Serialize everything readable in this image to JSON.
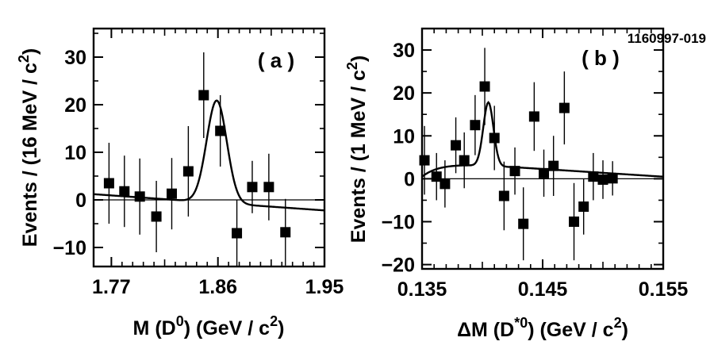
{
  "figure_id": "1160997-019",
  "chart_data": [
    {
      "type": "scatter",
      "panel_label": "( a )",
      "ylabel": "Events / (16 MeV / c",
      "ylabel_sup": "2",
      "ylabel_close": ")",
      "xlabel_pre": "M (D",
      "xlabel_sup1": "0",
      "xlabel_mid": ") (GeV / c",
      "xlabel_sup2": "2",
      "xlabel_post": ")",
      "xlim": [
        1.755,
        1.95
      ],
      "ylim": [
        -14,
        36
      ],
      "xticks": [
        1.77,
        1.86,
        1.95
      ],
      "xtick_labels": [
        "1.77",
        "1.86",
        "1.95"
      ],
      "yticks": [
        -10,
        0,
        10,
        20,
        30
      ],
      "ytick_labels": [
        "−10",
        "0",
        "10",
        "20",
        "30"
      ],
      "points": [
        {
          "x": 1.768,
          "y": 3.5,
          "err": 8.5
        },
        {
          "x": 1.781,
          "y": 1.8,
          "err": 7.5
        },
        {
          "x": 1.794,
          "y": 0.7,
          "err": 8.0
        },
        {
          "x": 1.808,
          "y": -3.5,
          "err": 7.5
        },
        {
          "x": 1.821,
          "y": 1.3,
          "err": 7.5
        },
        {
          "x": 1.835,
          "y": 6.0,
          "err": 9.5
        },
        {
          "x": 1.848,
          "y": 22.0,
          "err": 9.0
        },
        {
          "x": 1.862,
          "y": 14.5,
          "err": 7.5
        },
        {
          "x": 1.876,
          "y": -7.0,
          "err": 7.0
        },
        {
          "x": 1.889,
          "y": 2.7,
          "err": 5.5
        },
        {
          "x": 1.903,
          "y": 2.7,
          "err": 7.0
        },
        {
          "x": 1.917,
          "y": -6.8,
          "err": 7.0
        }
      ],
      "fit": {
        "y0": 1.2,
        "slope_per_gev": -17.5,
        "mean": 1.859,
        "sigma": 0.0085,
        "amp": 21.5
      }
    },
    {
      "type": "scatter",
      "panel_label": "( b )",
      "ylabel": "Events / (1 MeV / c",
      "ylabel_sup": "2",
      "ylabel_close": ")",
      "xlabel_pre": "ΔM (D",
      "xlabel_sup1": "*0",
      "xlabel_mid": ") (GeV / c",
      "xlabel_sup2": "2",
      "xlabel_post": ")",
      "xlim": [
        0.135,
        0.155
      ],
      "ylim": [
        -21,
        35
      ],
      "xticks": [
        0.135,
        0.145,
        0.155
      ],
      "xtick_labels": [
        "0.135",
        "0.145",
        "0.155"
      ],
      "yticks": [
        -20,
        -10,
        0,
        10,
        20,
        30
      ],
      "ytick_labels": [
        "−20",
        "−10",
        "0",
        "10",
        "20",
        "30"
      ],
      "points": [
        {
          "x": 0.1352,
          "y": 4.3,
          "err": 8.0
        },
        {
          "x": 0.1362,
          "y": 0.5,
          "err": 5.5
        },
        {
          "x": 0.1369,
          "y": -1.2,
          "err": 5.5
        },
        {
          "x": 0.1378,
          "y": 7.8,
          "err": 6.5
        },
        {
          "x": 0.1385,
          "y": 4.3,
          "err": 6.5
        },
        {
          "x": 0.1394,
          "y": 12.5,
          "err": 7.0
        },
        {
          "x": 0.1402,
          "y": 21.5,
          "err": 9.0
        },
        {
          "x": 0.141,
          "y": 9.5,
          "err": 7.5
        },
        {
          "x": 0.1418,
          "y": -4.0,
          "err": 8.0
        },
        {
          "x": 0.1427,
          "y": 1.8,
          "err": 5.5
        },
        {
          "x": 0.1434,
          "y": -10.5,
          "err": 8.5
        },
        {
          "x": 0.1443,
          "y": 14.5,
          "err": 8.0
        },
        {
          "x": 0.1451,
          "y": 1.3,
          "err": 5.5
        },
        {
          "x": 0.1459,
          "y": 3.0,
          "err": 7.0
        },
        {
          "x": 0.1468,
          "y": 16.5,
          "err": 8.5
        },
        {
          "x": 0.1476,
          "y": -10.0,
          "err": 9.0
        },
        {
          "x": 0.1484,
          "y": -6.5,
          "err": 6.5
        },
        {
          "x": 0.1492,
          "y": 0.5,
          "err": 5.5
        },
        {
          "x": 0.15,
          "y": -0.2,
          "err": 4.5
        },
        {
          "x": 0.1508,
          "y": 0.1,
          "err": 4.0
        }
      ],
      "fit": {
        "threshold": 0.1348,
        "plateau": 3.0,
        "mean": 0.1405,
        "sigma": 0.00042,
        "amp": 14.8,
        "tail": 0.0016
      }
    }
  ]
}
